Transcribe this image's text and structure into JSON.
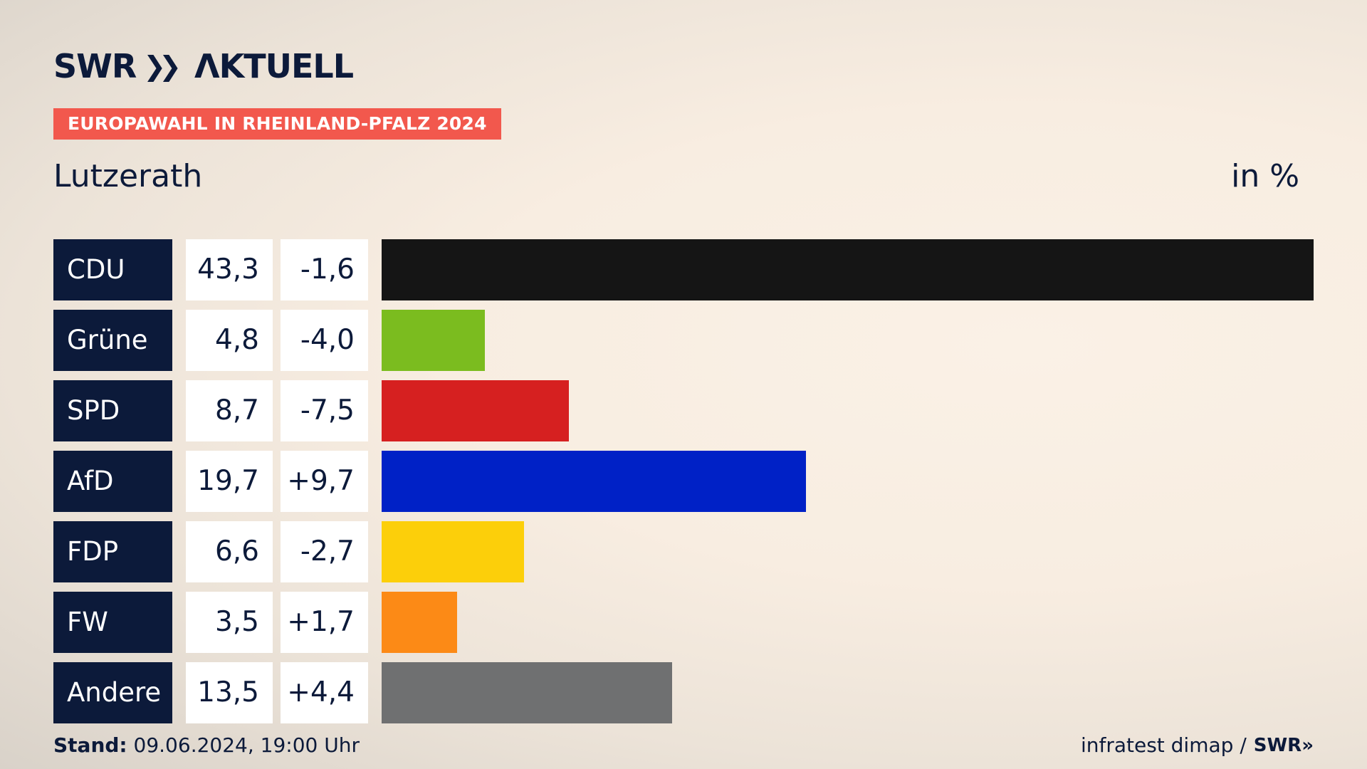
{
  "brand": {
    "logo_text_swr": "SWR",
    "logo_chevrons": "»",
    "logo_text_aktuell": "ΛKTUELL"
  },
  "badge": "EUROPAWAHL IN RHEINLAND-PFALZ 2024",
  "subtitle": "Lutzerath",
  "unit_label": "in %",
  "footer": {
    "stand_label": "Stand:",
    "stand_value": "09.06.2024, 19:00 Uhr",
    "source": "infratest dimap /",
    "source_logo": "SWR»"
  },
  "chart_data": {
    "type": "bar",
    "orientation": "horizontal",
    "title": "Lutzerath",
    "unit": "in %",
    "xlim": [
      0,
      43.3
    ],
    "categories": [
      "CDU",
      "Grüne",
      "SPD",
      "AfD",
      "FDP",
      "FW",
      "Andere"
    ],
    "values": [
      43.3,
      4.8,
      8.7,
      19.7,
      6.6,
      3.5,
      13.5
    ],
    "value_labels": [
      "43,3",
      "4,8",
      "8,7",
      "19,7",
      "6,6",
      "3,5",
      "13,5"
    ],
    "diff_labels": [
      "-1,6",
      "-4,0",
      "-7,5",
      "+9,7",
      "-2,7",
      "+1,7",
      "+4,4"
    ],
    "colors": [
      "#151515",
      "#7bbc1f",
      "#d62020",
      "#0021c6",
      "#fccf0a",
      "#fc8a16",
      "#6f7071"
    ]
  }
}
